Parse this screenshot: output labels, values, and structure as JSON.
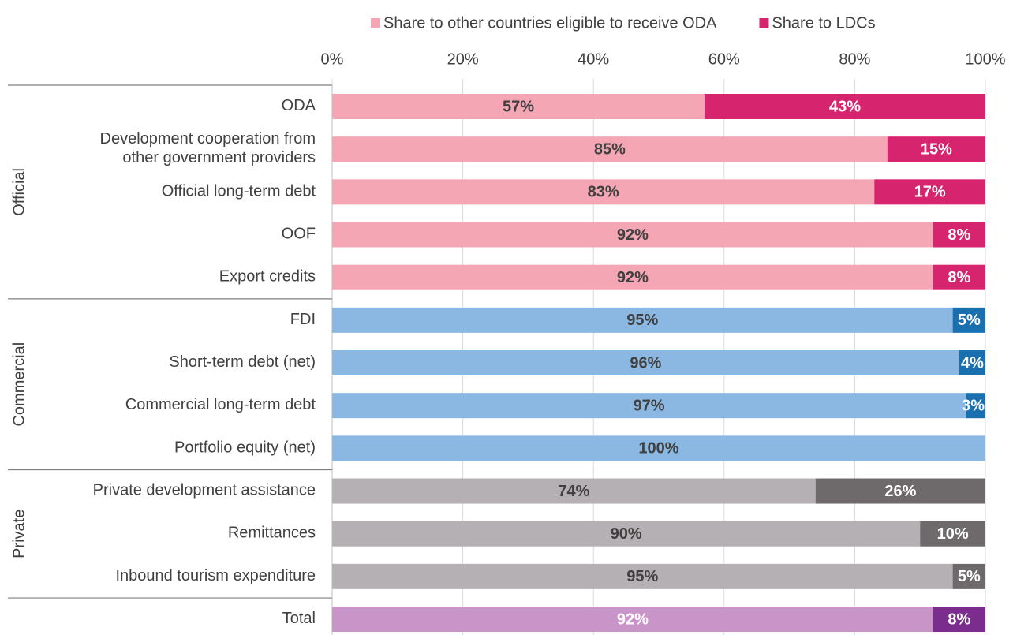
{
  "chart_data": {
    "type": "stacked-bar-horizontal",
    "categories": [
      "ODA",
      "Development cooperation from|other government providers",
      "Official long-term debt",
      "OOF",
      "Export credits",
      "FDI",
      "Short-term debt (net)",
      "Commercial long-term debt",
      "Portfolio equity (net)",
      "Private development assistance",
      "Remittances",
      "Inbound tourism expenditure",
      "Total"
    ],
    "groups": [
      {
        "name": "Official",
        "size": 5
      },
      {
        "name": "Commercial",
        "size": 4
      },
      {
        "name": "Private",
        "size": 3
      }
    ],
    "series": [
      {
        "name": "Share to other countries eligible to receive ODA",
        "color": "#f4a6b4",
        "colors": [
          "#f4a6b4",
          "#f4a6b4",
          "#f4a6b4",
          "#f4a6b4",
          "#f4a6b4",
          "#8ab8e2",
          "#8ab8e2",
          "#8ab8e2",
          "#8ab8e2",
          "#b5b0b3",
          "#b5b0b3",
          "#b5b0b3",
          "#c994c7"
        ],
        "values": [
          57,
          85,
          83,
          92,
          92,
          95,
          96,
          97,
          100,
          74,
          90,
          95,
          92
        ],
        "value_labels": [
          "57%",
          "85%",
          "83%",
          "92%",
          "92%",
          "95%",
          "96%",
          "97%",
          "100%",
          "74%",
          "90%",
          "95%",
          "92%"
        ]
      },
      {
        "name": "Share to LDCs",
        "color": "#d6246e",
        "colors": [
          "#d6246e",
          "#d6246e",
          "#d6246e",
          "#d6246e",
          "#d6246e",
          "#1a6faf",
          "#1a6faf",
          "#1a6faf",
          "#1a6faf",
          "#6e6a6c",
          "#6e6a6c",
          "#6e6a6c",
          "#7b2d8e"
        ],
        "values": [
          43,
          15,
          17,
          8,
          8,
          5,
          4,
          3,
          0,
          26,
          10,
          5,
          8
        ],
        "value_labels": [
          "43%",
          "15%",
          "17%",
          "8%",
          "8%",
          "5%",
          "4%",
          "3%",
          null,
          "26%",
          "10%",
          "5%",
          "8%"
        ]
      }
    ],
    "xlim": [
      0,
      100
    ],
    "xticks": [
      {
        "value": 0,
        "label": "0%"
      },
      {
        "value": 20,
        "label": "20%"
      },
      {
        "value": 40,
        "label": "40%"
      },
      {
        "value": 60,
        "label": "60%"
      },
      {
        "value": 80,
        "label": "80%"
      },
      {
        "value": 100,
        "label": "100%"
      }
    ],
    "grid": true,
    "legend": "top"
  }
}
